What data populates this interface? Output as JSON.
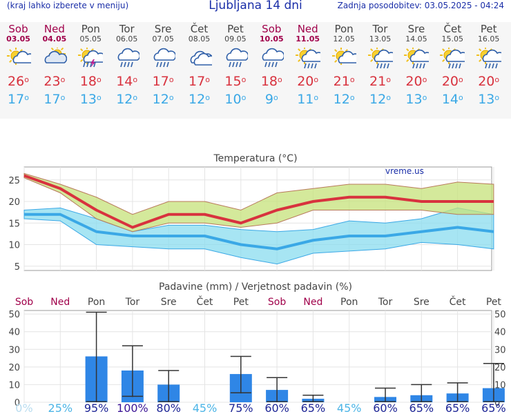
{
  "header": {
    "menu_hint": "(kraj lahko izberete v meniju)",
    "title": "Ljubljana 14 dni",
    "updated": "Zadnja posodobitev: 03.05.2025 - 04:24"
  },
  "days": [
    {
      "name": "Sob",
      "date": "03.05",
      "weekend": true,
      "icon": "sun-cloud-icon",
      "max": "26",
      "min": "17"
    },
    {
      "name": "Ned",
      "date": "04.05",
      "weekend": true,
      "icon": "cloud-sun-icon",
      "max": "23",
      "min": "17"
    },
    {
      "name": "Pon",
      "date": "05.05",
      "weekend": false,
      "icon": "sun-storm-icon",
      "max": "18",
      "min": "13"
    },
    {
      "name": "Tor",
      "date": "06.05",
      "weekend": false,
      "icon": "cloud-rain-icon",
      "max": "14",
      "min": "12"
    },
    {
      "name": "Sre",
      "date": "07.05",
      "weekend": false,
      "icon": "cloud-rain-icon",
      "max": "17",
      "min": "12"
    },
    {
      "name": "Čet",
      "date": "08.05",
      "weekend": false,
      "icon": "cloud-icon",
      "max": "17",
      "min": "12"
    },
    {
      "name": "Pet",
      "date": "09.05",
      "weekend": false,
      "icon": "cloud-rain-icon",
      "max": "15",
      "min": "10"
    },
    {
      "name": "Sob",
      "date": "10.05",
      "weekend": true,
      "icon": "cloud-rain-icon",
      "max": "18",
      "min": "9"
    },
    {
      "name": "Ned",
      "date": "11.05",
      "weekend": true,
      "icon": "sun-cloud-rain-icon",
      "max": "20",
      "min": "11"
    },
    {
      "name": "Pon",
      "date": "12.05",
      "weekend": false,
      "icon": "sun-cloud-icon",
      "max": "21",
      "min": "12"
    },
    {
      "name": "Tor",
      "date": "13.05",
      "weekend": false,
      "icon": "sun-cloud-rain-icon",
      "max": "21",
      "min": "12"
    },
    {
      "name": "Sre",
      "date": "14.05",
      "weekend": false,
      "icon": "sun-cloud-rain-icon",
      "max": "20",
      "min": "13"
    },
    {
      "name": "Čet",
      "date": "15.05",
      "weekend": false,
      "icon": "sun-cloud-rain-icon",
      "max": "20",
      "min": "14"
    },
    {
      "name": "Pet",
      "date": "16.05",
      "weekend": false,
      "icon": "sun-cloud-rain-icon",
      "max": "20",
      "min": "13"
    }
  ],
  "chart_data": [
    {
      "type": "line",
      "title": "Temperatura (°C)",
      "watermark": "vreme.us",
      "ylim": [
        4,
        28
      ],
      "yticks": [
        "5",
        "10",
        "15",
        "20",
        "25"
      ],
      "series": [
        {
          "name": "max",
          "color": "#d8323e",
          "values": [
            26,
            23,
            18,
            14,
            17,
            17,
            15,
            18,
            20,
            21,
            21,
            20,
            20,
            20
          ]
        },
        {
          "name": "min",
          "color": "#3aa8e6",
          "values": [
            17,
            17,
            13,
            12,
            12,
            12,
            10,
            9,
            11,
            12,
            12,
            13,
            14,
            13
          ]
        },
        {
          "name": "max_band_low",
          "values": [
            25.5,
            22,
            16,
            13,
            15,
            15,
            14,
            15,
            18,
            18,
            18,
            18,
            17,
            17
          ]
        },
        {
          "name": "max_band_high",
          "values": [
            26.5,
            24,
            21,
            17,
            20,
            20,
            18,
            22,
            23,
            24,
            24,
            23,
            24.5,
            24
          ]
        },
        {
          "name": "min_band_low",
          "values": [
            16,
            15.5,
            10,
            9.5,
            9,
            9,
            7,
            5.5,
            8,
            8.5,
            9,
            10.5,
            10,
            9
          ]
        },
        {
          "name": "min_band_high",
          "values": [
            18,
            18.5,
            16,
            13,
            14.5,
            14.5,
            13.5,
            13,
            13.5,
            15.5,
            15,
            16,
            18.5,
            17
          ]
        }
      ]
    },
    {
      "type": "bar",
      "title": "Padavine (mm) / Verjetnost padavin (%)",
      "ylim": [
        0,
        52
      ],
      "yticks": [
        "0",
        "10",
        "20",
        "30",
        "40",
        "50"
      ],
      "categories": [
        "Sob",
        "Ned",
        "Pon",
        "Tor",
        "Sre",
        "Čet",
        "Pet",
        "Sob",
        "Ned",
        "Pon",
        "Tor",
        "Sre",
        "Čet",
        "Pet"
      ],
      "weekend": [
        true,
        true,
        false,
        false,
        false,
        false,
        false,
        true,
        true,
        false,
        false,
        false,
        false,
        false
      ],
      "values": [
        0,
        0,
        26,
        18,
        10,
        0,
        16,
        7,
        2,
        0,
        3,
        4,
        5,
        8
      ],
      "err_low": [
        0,
        0,
        0,
        3,
        0,
        0,
        5,
        0,
        0,
        0,
        0,
        0,
        0,
        0
      ],
      "err_high": [
        0,
        0,
        51,
        32,
        18,
        0,
        26,
        14,
        4,
        0,
        8,
        10,
        11,
        22
      ],
      "probability": [
        "0%",
        "25%",
        "95%",
        "100%",
        "80%",
        "45%",
        "75%",
        "60%",
        "65%",
        "45%",
        "60%",
        "65%",
        "65%",
        "65%"
      ],
      "probability_colors": [
        "#b8dcef",
        "#4bb4e6",
        "#1e2696",
        "#3c1596",
        "#1e2696",
        "#4bb4e6",
        "#1e2696",
        "#1e2696",
        "#1e2696",
        "#4bb4e6",
        "#1e2696",
        "#1e2696",
        "#1e2696",
        "#1e2696"
      ]
    }
  ]
}
